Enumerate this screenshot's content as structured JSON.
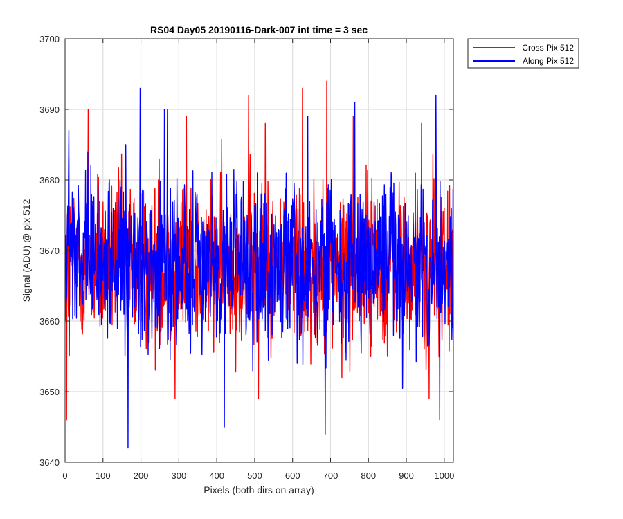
{
  "chart_data": {
    "type": "line",
    "title": "RS04 Day05 20190116-Dark-007 int time = 3 sec",
    "xlabel": "Pixels (both dirs on array)",
    "ylabel": "Signal (ADU) @ pix 512",
    "xlim": [
      0,
      1024
    ],
    "ylim": [
      3640,
      3700
    ],
    "xticks": [
      0,
      100,
      200,
      300,
      400,
      500,
      600,
      700,
      800,
      900,
      1000
    ],
    "yticks": [
      3640,
      3650,
      3660,
      3670,
      3680,
      3690,
      3700
    ],
    "grid": true,
    "legend_position": "outside-top-right",
    "series": [
      {
        "name": "Cross Pix 512",
        "color": "#ff0000",
        "generation": "noisy signal sampled at every pixel; values below are representative points",
        "mean": 3668,
        "min": 3646,
        "max": 3694,
        "x": [
          0,
          4,
          10,
          40,
          61,
          120,
          200,
          246,
          290,
          320,
          440,
          484,
          510,
          528,
          626,
          690,
          730,
          760,
          850,
          940,
          960,
          1000,
          1024
        ],
        "values": [
          3668,
          3646,
          3683,
          3660,
          3690,
          3665,
          3660,
          3680,
          3649,
          3689,
          3670,
          3692,
          3649,
          3688,
          3693,
          3694,
          3652,
          3689,
          3655,
          3688,
          3649,
          3676,
          3668
        ]
      },
      {
        "name": "Along Pix 512",
        "color": "#0000ff",
        "generation": "noisy signal sampled at every pixel; values below are representative points",
        "mean": 3668,
        "min": 3642,
        "max": 3693,
        "x": [
          0,
          10,
          60,
          160,
          166,
          198,
          262,
          270,
          420,
          480,
          640,
          686,
          764,
          840,
          978,
          988,
          1024
        ],
        "values": [
          3668,
          3687,
          3684,
          3685,
          3642,
          3693,
          3690,
          3690,
          3645,
          3675,
          3689,
          3644,
          3691,
          3660,
          3692,
          3646,
          3668
        ]
      }
    ]
  }
}
